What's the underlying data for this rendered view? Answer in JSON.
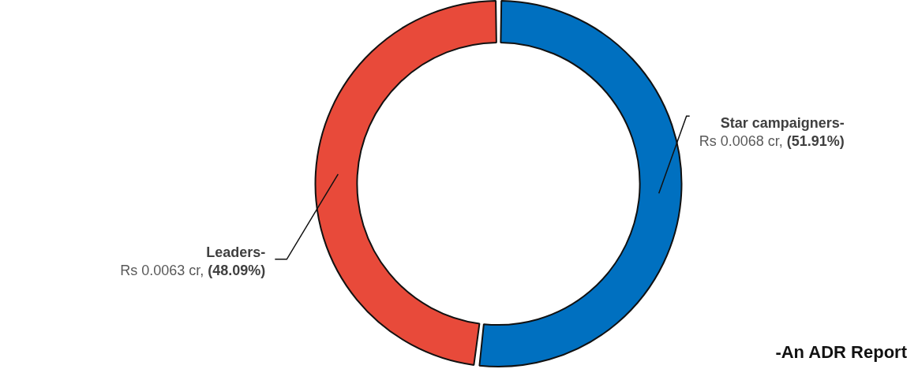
{
  "chart_data": {
    "type": "donut",
    "categories": [
      "Star campaigners-",
      "Leaders-"
    ],
    "values": [
      51.91,
      48.09
    ],
    "colors": [
      "#0070c0",
      "#e84a3a"
    ],
    "value_labels": [
      "Rs 0.0068 cr, (51.91%)",
      "Rs 0.0063 cr, (48.09%)"
    ],
    "legend": false,
    "annotations": [
      "-An ADR Report"
    ]
  }
}
